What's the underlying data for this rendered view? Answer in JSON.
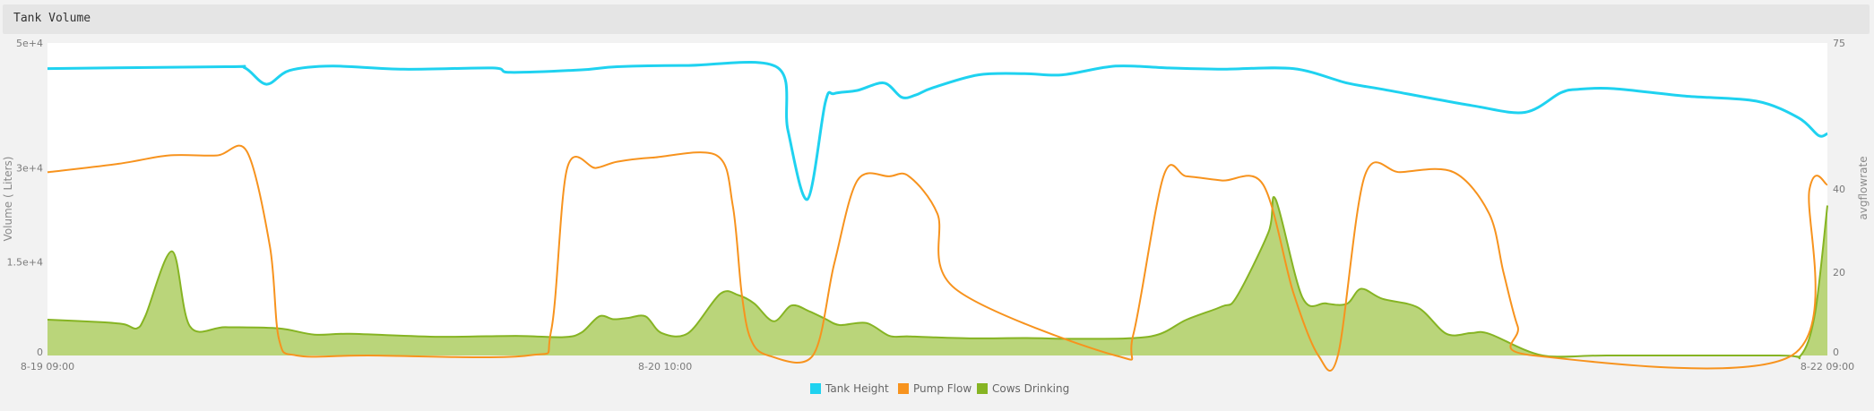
{
  "panel": {
    "title": "Tank Volume"
  },
  "chart_data": {
    "type": "line",
    "title": "Tank Volume",
    "ylabel": "Volume ( Liters)",
    "y2label": "avgflowrate",
    "xlim": [
      "8-19 09:00",
      "8-22 09:00"
    ],
    "ylim": [
      0,
      50000
    ],
    "y2lim": [
      0,
      75
    ],
    "yticks": [
      {
        "value": 0,
        "label": "0"
      },
      {
        "value": 15000,
        "label": "1.5e+4"
      },
      {
        "value": 30000,
        "label": "3e+4"
      },
      {
        "value": 50000,
        "label": "5e+4"
      }
    ],
    "y2ticks": [
      {
        "value": 0,
        "label": "0"
      },
      {
        "value": 20,
        "label": "20"
      },
      {
        "value": 40,
        "label": "40"
      },
      {
        "value": 75,
        "label": "75"
      }
    ],
    "xticks": [
      {
        "value": 0,
        "label": "8-19 09:00"
      },
      {
        "value": 0.347,
        "label": "8-20 10:00"
      },
      {
        "value": 1,
        "label": "8-22 09:00"
      }
    ],
    "legend_position": "bottom-center",
    "grid": false,
    "series": [
      {
        "name": "Tank Height",
        "axis": "left",
        "style": "line",
        "color": "#1fd2f0",
        "x": [
          0,
          0.1,
          0.111,
          0.123,
          0.136,
          0.16,
          0.2,
          0.25,
          0.26,
          0.3,
          0.32,
          0.36,
          0.41,
          0.416,
          0.427,
          0.437,
          0.442,
          0.455,
          0.47,
          0.48,
          0.488,
          0.497,
          0.523,
          0.549,
          0.57,
          0.6,
          0.63,
          0.66,
          0.7,
          0.73,
          0.75,
          0.8,
          0.83,
          0.85,
          0.86,
          0.88,
          0.92,
          0.96,
          0.984,
          0.995,
          1
        ],
        "values": [
          45900,
          46200,
          46000,
          43400,
          45600,
          46300,
          45800,
          46000,
          45300,
          45700,
          46200,
          46400,
          46100,
          36000,
          25000,
          40500,
          41900,
          42400,
          43600,
          41300,
          41700,
          42800,
          44900,
          45100,
          44900,
          46300,
          46000,
          45800,
          45900,
          43600,
          42600,
          40000,
          38900,
          42000,
          42600,
          42700,
          41500,
          40700,
          38000,
          35200,
          35500
        ]
      },
      {
        "name": "Pump Flow",
        "axis": "right",
        "style": "line",
        "color": "#f7931e",
        "x": [
          0,
          0.04,
          0.068,
          0.095,
          0.112,
          0.125,
          0.13,
          0.14,
          0.18,
          0.27,
          0.283,
          0.292,
          0.308,
          0.32,
          0.34,
          0.376,
          0.385,
          0.39,
          0.395,
          0.405,
          0.43,
          0.442,
          0.455,
          0.473,
          0.484,
          0.5,
          0.51,
          0.6,
          0.61,
          0.627,
          0.64,
          0.66,
          0.683,
          0.7,
          0.714,
          0.725,
          0.74,
          0.76,
          0.79,
          0.81,
          0.818,
          0.826,
          0.835,
          0.98,
          0.99,
          1
        ],
        "values": [
          44,
          46,
          48,
          48,
          49,
          26,
          4,
          0,
          0,
          0,
          6,
          45,
          45,
          46.5,
          47.5,
          48,
          36,
          15,
          4,
          0,
          0,
          22,
          42,
          43,
          43,
          34,
          16,
          0,
          5,
          43,
          43,
          42,
          41,
          15,
          0,
          0,
          43,
          44,
          44,
          34,
          20,
          7,
          0,
          0,
          40,
          41
        ]
      },
      {
        "name": "Cows Drinking",
        "axis": "right",
        "style": "area",
        "color": "#86b423",
        "fill": "#bad57a",
        "x": [
          0,
          0.03,
          0.043,
          0.05,
          0.055,
          0.07,
          0.08,
          0.1,
          0.13,
          0.15,
          0.17,
          0.22,
          0.263,
          0.29,
          0.3,
          0.31,
          0.318,
          0.326,
          0.336,
          0.345,
          0.36,
          0.378,
          0.388,
          0.397,
          0.408,
          0.418,
          0.428,
          0.437,
          0.445,
          0.46,
          0.473,
          0.483,
          0.495,
          0.52,
          0.55,
          0.58,
          0.62,
          0.64,
          0.66,
          0.668,
          0.686,
          0.69,
          0.705,
          0.718,
          0.73,
          0.738,
          0.75,
          0.77,
          0.786,
          0.8,
          0.81,
          0.84,
          0.876,
          0.973,
          0.985,
          0.993,
          1
        ],
        "values": [
          8.6,
          8,
          7.5,
          6.5,
          9.5,
          25,
          7,
          6.8,
          6.5,
          5,
          5.2,
          4.5,
          4.7,
          4.4,
          5.5,
          9.4,
          8.7,
          9,
          9.4,
          5.4,
          5.4,
          14.8,
          14.5,
          12.5,
          8.2,
          12,
          10.6,
          8.8,
          7.3,
          7.8,
          4.7,
          4.6,
          4.4,
          4.1,
          4.2,
          4,
          4.6,
          8.6,
          11.8,
          14,
          29.6,
          37.5,
          14,
          12.5,
          12.4,
          16,
          13.6,
          11.5,
          5.2,
          5.4,
          5.2,
          0,
          0,
          0,
          0,
          10,
          36
        ]
      }
    ]
  }
}
